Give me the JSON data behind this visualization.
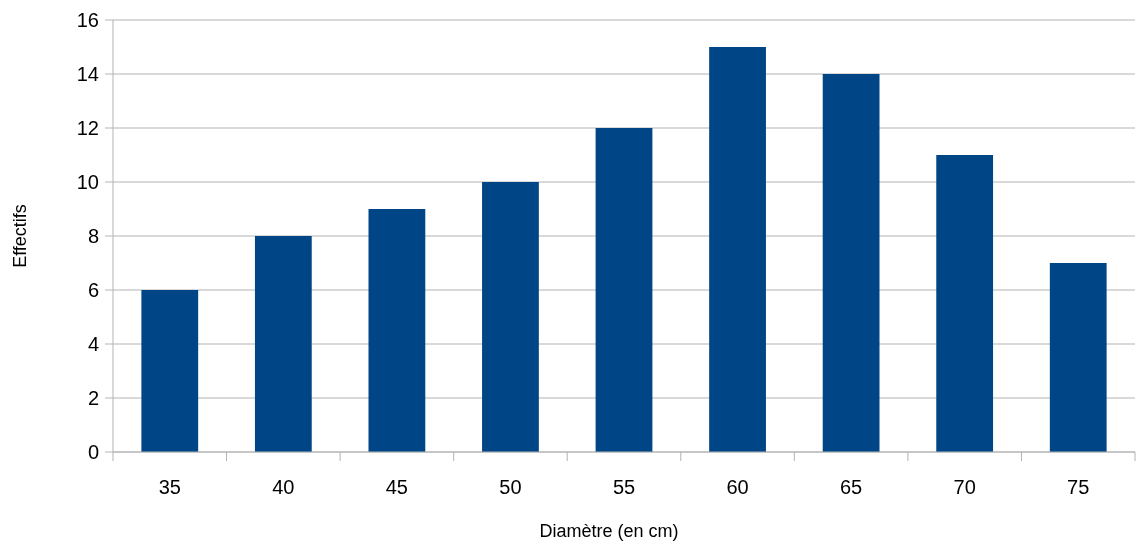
{
  "chart_data": {
    "type": "bar",
    "xlabel": "Diamètre (en cm)",
    "ylabel": "Effectifs",
    "categories": [
      "35",
      "40",
      "45",
      "50",
      "55",
      "60",
      "65",
      "70",
      "75"
    ],
    "values": [
      6,
      8,
      9,
      10,
      12,
      15,
      14,
      11,
      7
    ],
    "color": "#004586",
    "ylim": [
      0,
      16
    ],
    "yticks": [
      0,
      2,
      4,
      6,
      8,
      10,
      12,
      14,
      16
    ],
    "grid": "y"
  }
}
